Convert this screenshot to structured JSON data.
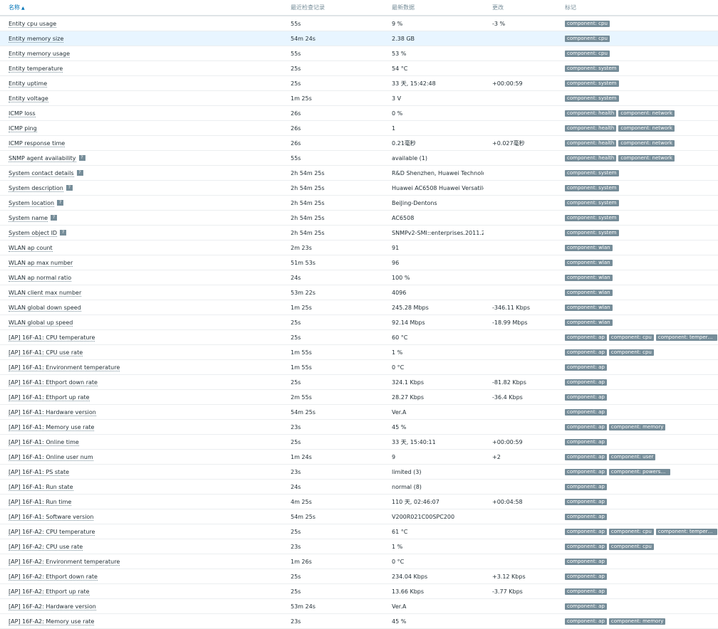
{
  "headers": {
    "name": "名称",
    "last_check": "最近检查记录",
    "last_value": "最新数据",
    "change": "更改",
    "tags": "标记",
    "sort_indicator": "▲"
  },
  "colors": {
    "link": "#0275b8",
    "tag_bg": "#768d99",
    "highlight": "#e8f5ff"
  },
  "rows": [
    {
      "name": "Entity cpu usage",
      "help": false,
      "last_check": "55s",
      "value": "9 %",
      "change": "-3 %",
      "tags": [
        "component: cpu"
      ]
    },
    {
      "name": "Entity memory size",
      "help": false,
      "last_check": "54m 24s",
      "value": "2.38 GB",
      "change": "",
      "tags": [
        "component: cpu"
      ],
      "highlight": true
    },
    {
      "name": "Entity memory usage",
      "help": false,
      "last_check": "55s",
      "value": "53 %",
      "change": "",
      "tags": [
        "component: cpu"
      ]
    },
    {
      "name": "Entity temperature",
      "help": false,
      "last_check": "25s",
      "value": "54 °C",
      "change": "",
      "tags": [
        "component: system"
      ]
    },
    {
      "name": "Entity uptime",
      "help": false,
      "last_check": "25s",
      "value": "33 天, 15:42:48",
      "change": "+00:00:59",
      "tags": [
        "component: system"
      ]
    },
    {
      "name": "Entity voltage",
      "help": false,
      "last_check": "1m 25s",
      "value": "3 V",
      "change": "",
      "tags": [
        "component: system"
      ]
    },
    {
      "name": "ICMP loss",
      "help": false,
      "last_check": "26s",
      "value": "0 %",
      "change": "",
      "tags": [
        "component: health",
        "component: network"
      ]
    },
    {
      "name": "ICMP ping",
      "help": false,
      "last_check": "26s",
      "value": "1",
      "change": "",
      "tags": [
        "component: health",
        "component: network"
      ]
    },
    {
      "name": "ICMP response time",
      "help": false,
      "last_check": "26s",
      "value": "0.21毫秒",
      "change": "+0.027毫秒",
      "tags": [
        "component: health",
        "component: network"
      ]
    },
    {
      "name": "SNMP agent availability",
      "help": true,
      "last_check": "55s",
      "value": "available (1)",
      "change": "",
      "tags": [
        "component: health",
        "component: network"
      ]
    },
    {
      "name": "System contact details",
      "help": true,
      "last_check": "2h 54m 25s",
      "value": "R&D Shenzhen, Huawei Technologi...",
      "change": "",
      "tags": [
        "component: system"
      ]
    },
    {
      "name": "System description",
      "help": true,
      "last_check": "2h 54m 25s",
      "value": "Huawei AC6508 Huawei Versatile R...",
      "change": "",
      "tags": [
        "component: system"
      ]
    },
    {
      "name": "System location",
      "help": true,
      "last_check": "2h 54m 25s",
      "value": "BeiJing-Dentons",
      "change": "",
      "tags": [
        "component: system"
      ]
    },
    {
      "name": "System name",
      "help": true,
      "last_check": "2h 54m 25s",
      "value": "AC6508",
      "change": "",
      "tags": [
        "component: system"
      ]
    },
    {
      "name": "System object ID",
      "help": true,
      "last_check": "2h 54m 25s",
      "value": "SNMPv2-SMI::enterprises.2011.2.2...",
      "change": "",
      "tags": [
        "component: system"
      ]
    },
    {
      "name": "WLAN ap count",
      "help": false,
      "last_check": "2m 23s",
      "value": "91",
      "change": "",
      "tags": [
        "component: wlan"
      ]
    },
    {
      "name": "WLAN ap max number",
      "help": false,
      "last_check": "51m 53s",
      "value": "96",
      "change": "",
      "tags": [
        "component: wlan"
      ]
    },
    {
      "name": "WLAN ap normal ratio",
      "help": false,
      "last_check": "24s",
      "value": "100 %",
      "change": "",
      "tags": [
        "component: wlan"
      ]
    },
    {
      "name": "WLAN client max number",
      "help": false,
      "last_check": "53m 22s",
      "value": "4096",
      "change": "",
      "tags": [
        "component: wlan"
      ]
    },
    {
      "name": "WLAN global down speed",
      "help": false,
      "last_check": "1m 25s",
      "value": "245.28 Mbps",
      "change": "-346.11 Kbps",
      "tags": [
        "component: wlan"
      ]
    },
    {
      "name": "WLAN global up speed",
      "help": false,
      "last_check": "25s",
      "value": "92.14 Mbps",
      "change": "-18.99 Mbps",
      "tags": [
        "component: wlan"
      ]
    },
    {
      "name": "[AP] 16F-A1: CPU temperature",
      "help": false,
      "last_check": "25s",
      "value": "60 °C",
      "change": "",
      "tags": [
        "component: ap",
        "component: cpu",
        "component: temperat..."
      ]
    },
    {
      "name": "[AP] 16F-A1: CPU use rate",
      "help": false,
      "last_check": "1m 55s",
      "value": "1 %",
      "change": "",
      "tags": [
        "component: ap",
        "component: cpu"
      ]
    },
    {
      "name": "[AP] 16F-A1: Environment temperature",
      "help": false,
      "last_check": "1m 55s",
      "value": "0 °C",
      "change": "",
      "tags": [
        "component: ap"
      ]
    },
    {
      "name": "[AP] 16F-A1: Ethport down rate",
      "help": false,
      "last_check": "25s",
      "value": "324.1 Kbps",
      "change": "-81.82 Kbps",
      "tags": [
        "component: ap"
      ]
    },
    {
      "name": "[AP] 16F-A1: Ethport up rate",
      "help": false,
      "last_check": "2m 55s",
      "value": "28.27 Kbps",
      "change": "-36.4 Kbps",
      "tags": [
        "component: ap"
      ]
    },
    {
      "name": "[AP] 16F-A1: Hardware version",
      "help": false,
      "last_check": "54m 25s",
      "value": "Ver.A",
      "change": "",
      "tags": [
        "component: ap"
      ]
    },
    {
      "name": "[AP] 16F-A1: Memory use rate",
      "help": false,
      "last_check": "23s",
      "value": "45 %",
      "change": "",
      "tags": [
        "component: ap",
        "component: memory"
      ]
    },
    {
      "name": "[AP] 16F-A1: Online time",
      "help": false,
      "last_check": "25s",
      "value": "33 天, 15:40:11",
      "change": "+00:00:59",
      "tags": [
        "component: ap"
      ]
    },
    {
      "name": "[AP] 16F-A1: Online user num",
      "help": false,
      "last_check": "1m 24s",
      "value": "9",
      "change": "+2",
      "tags": [
        "component: ap",
        "component: user"
      ]
    },
    {
      "name": "[AP] 16F-A1: PS state",
      "help": false,
      "last_check": "23s",
      "value": "limited (3)",
      "change": "",
      "tags": [
        "component: ap",
        "component: powersu..."
      ]
    },
    {
      "name": "[AP] 16F-A1: Run state",
      "help": false,
      "last_check": "24s",
      "value": "normal (8)",
      "change": "",
      "tags": [
        "component: ap"
      ]
    },
    {
      "name": "[AP] 16F-A1: Run time",
      "help": false,
      "last_check": "4m 25s",
      "value": "110 天, 02:46:07",
      "change": "+00:04:58",
      "tags": [
        "component: ap"
      ]
    },
    {
      "name": "[AP] 16F-A1: Software version",
      "help": false,
      "last_check": "54m 25s",
      "value": "V200R021C00SPC200",
      "change": "",
      "tags": [
        "component: ap"
      ]
    },
    {
      "name": "[AP] 16F-A2: CPU temperature",
      "help": false,
      "last_check": "25s",
      "value": "61 °C",
      "change": "",
      "tags": [
        "component: ap",
        "component: cpu",
        "component: temperat..."
      ]
    },
    {
      "name": "[AP] 16F-A2: CPU use rate",
      "help": false,
      "last_check": "23s",
      "value": "1 %",
      "change": "",
      "tags": [
        "component: ap",
        "component: cpu"
      ]
    },
    {
      "name": "[AP] 16F-A2: Environment temperature",
      "help": false,
      "last_check": "1m 26s",
      "value": "0 °C",
      "change": "",
      "tags": [
        "component: ap"
      ]
    },
    {
      "name": "[AP] 16F-A2: Ethport down rate",
      "help": false,
      "last_check": "25s",
      "value": "234.04 Kbps",
      "change": "+3.12 Kbps",
      "tags": [
        "component: ap"
      ]
    },
    {
      "name": "[AP] 16F-A2: Ethport up rate",
      "help": false,
      "last_check": "25s",
      "value": "13.66 Kbps",
      "change": "-3.77 Kbps",
      "tags": [
        "component: ap"
      ]
    },
    {
      "name": "[AP] 16F-A2: Hardware version",
      "help": false,
      "last_check": "53m 24s",
      "value": "Ver.A",
      "change": "",
      "tags": [
        "component: ap"
      ]
    },
    {
      "name": "[AP] 16F-A2: Memory use rate",
      "help": false,
      "last_check": "23s",
      "value": "45 %",
      "change": "",
      "tags": [
        "component: ap",
        "component: memory"
      ]
    }
  ]
}
